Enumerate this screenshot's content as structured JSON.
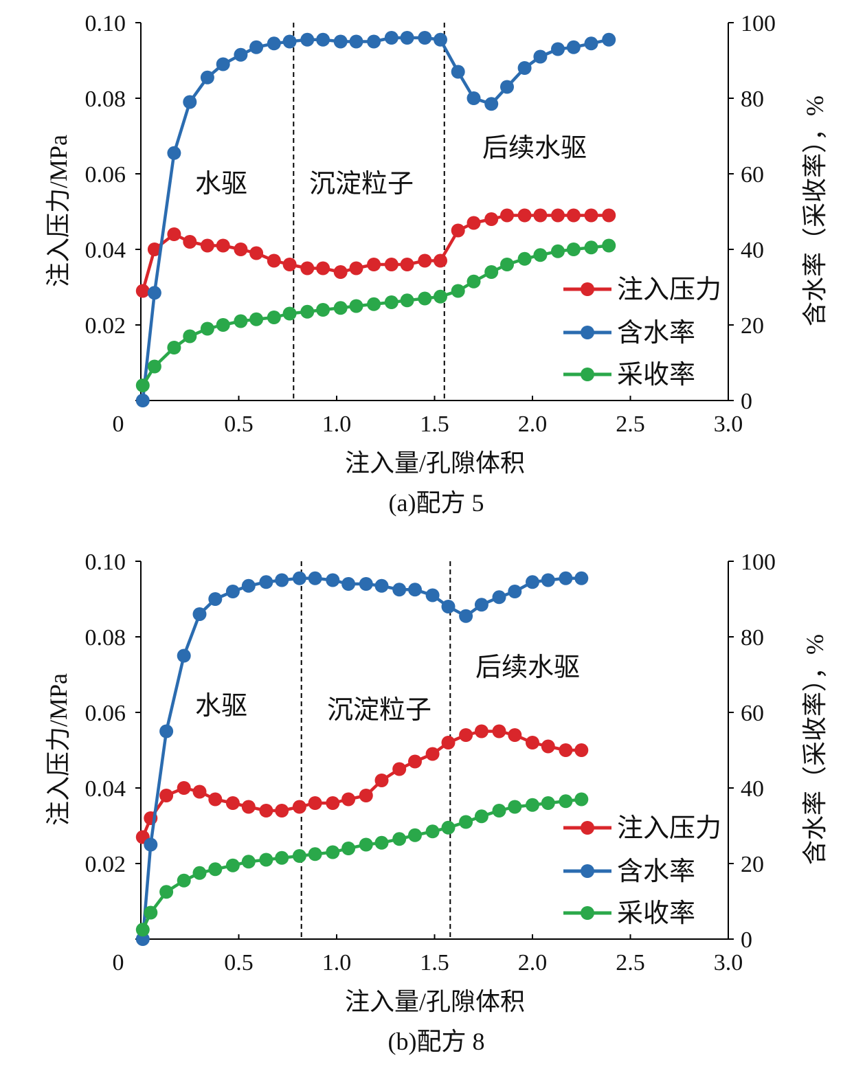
{
  "colors": {
    "pressure": "#d9262b",
    "water_cut": "#2b6cb0",
    "recovery": "#2aa84a"
  },
  "chart_data": [
    {
      "type": "line",
      "caption": "(a)配方 5",
      "xlabel": "注入量/孔隙体积",
      "ylabel_left": "注入压力/MPa",
      "ylabel_right": "含水率（采收率），%",
      "xlim": [
        0,
        3.0
      ],
      "ylim_left": [
        0,
        0.1
      ],
      "ylim_right": [
        0,
        100
      ],
      "xticks": [
        "0",
        "0.5",
        "1.0",
        "1.5",
        "2.0",
        "2.5",
        "3.0"
      ],
      "yticks_left": [
        "",
        "0.02",
        "0.04",
        "0.06",
        "0.08",
        "0.10"
      ],
      "yticks_right": [
        "0",
        "20",
        "40",
        "60",
        "80",
        "100"
      ],
      "grid": false,
      "legend_position": "bottom-right",
      "dividers_x": [
        0.78,
        1.55
      ],
      "regions": [
        "水驱",
        "沉淀粒子",
        "后续水驱"
      ],
      "series": [
        {
          "name": "注入压力",
          "axis": "left",
          "color_key": "pressure",
          "x": [
            0.01,
            0.07,
            0.17,
            0.25,
            0.34,
            0.42,
            0.51,
            0.59,
            0.68,
            0.76,
            0.85,
            0.93,
            1.02,
            1.1,
            1.19,
            1.28,
            1.36,
            1.45,
            1.53,
            1.62,
            1.7,
            1.79,
            1.87,
            1.96,
            2.04,
            2.13,
            2.21,
            2.3,
            2.39
          ],
          "y": [
            0.029,
            0.04,
            0.044,
            0.042,
            0.041,
            0.041,
            0.04,
            0.039,
            0.037,
            0.036,
            0.035,
            0.035,
            0.034,
            0.035,
            0.036,
            0.036,
            0.036,
            0.037,
            0.037,
            0.045,
            0.047,
            0.048,
            0.049,
            0.049,
            0.049,
            0.049,
            0.049,
            0.049,
            0.049
          ]
        },
        {
          "name": "含水率",
          "axis": "right",
          "color_key": "water_cut",
          "x": [
            0.01,
            0.07,
            0.17,
            0.25,
            0.34,
            0.42,
            0.51,
            0.59,
            0.68,
            0.76,
            0.85,
            0.93,
            1.02,
            1.1,
            1.19,
            1.28,
            1.36,
            1.45,
            1.53,
            1.62,
            1.7,
            1.79,
            1.87,
            1.96,
            2.04,
            2.13,
            2.21,
            2.3,
            2.39
          ],
          "y": [
            0,
            28.5,
            65.5,
            79,
            85.5,
            89,
            91.5,
            93.5,
            94.5,
            95,
            95.5,
            95.5,
            95,
            95,
            95,
            96,
            96,
            96,
            95.5,
            87,
            80,
            78.5,
            83,
            88,
            91,
            93,
            93.5,
            94.5,
            95.5
          ]
        },
        {
          "name": "采收率",
          "axis": "right",
          "color_key": "recovery",
          "x": [
            0.01,
            0.07,
            0.17,
            0.25,
            0.34,
            0.42,
            0.51,
            0.59,
            0.68,
            0.76,
            0.85,
            0.93,
            1.02,
            1.1,
            1.19,
            1.28,
            1.36,
            1.45,
            1.53,
            1.62,
            1.7,
            1.79,
            1.87,
            1.96,
            2.04,
            2.13,
            2.21,
            2.3,
            2.39
          ],
          "y": [
            4,
            9,
            14,
            17,
            19,
            20,
            21,
            21.5,
            22,
            23,
            23.5,
            24,
            24.5,
            25,
            25.5,
            26,
            26.5,
            27,
            27.5,
            29,
            31.5,
            34,
            36,
            37.5,
            38.5,
            39.5,
            40,
            40.5,
            41
          ]
        }
      ]
    },
    {
      "type": "line",
      "caption": "(b)配方 8",
      "xlabel": "注入量/孔隙体积",
      "ylabel_left": "注入压力/MPa",
      "ylabel_right": "含水率（采收率），%",
      "xlim": [
        0,
        3.0
      ],
      "ylim_left": [
        0,
        0.1
      ],
      "ylim_right": [
        0,
        100
      ],
      "xticks": [
        "0",
        "0.5",
        "1.0",
        "1.5",
        "2.0",
        "2.5",
        "3.0"
      ],
      "yticks_left": [
        "",
        "0.02",
        "0.04",
        "0.06",
        "0.08",
        "0.10"
      ],
      "yticks_right": [
        "0",
        "20",
        "40",
        "60",
        "80",
        "100"
      ],
      "grid": false,
      "legend_position": "bottom-right",
      "dividers_x": [
        0.82,
        1.58
      ],
      "regions": [
        "水驱",
        "沉淀粒子",
        "后续水驱"
      ],
      "series": [
        {
          "name": "注入压力",
          "axis": "left",
          "color_key": "pressure",
          "x": [
            0.01,
            0.05,
            0.13,
            0.22,
            0.3,
            0.38,
            0.47,
            0.55,
            0.64,
            0.72,
            0.81,
            0.89,
            0.98,
            1.06,
            1.15,
            1.23,
            1.32,
            1.4,
            1.49,
            1.57,
            1.66,
            1.74,
            1.83,
            1.91,
            2.0,
            2.08,
            2.17,
            2.25
          ],
          "y": [
            0.027,
            0.032,
            0.038,
            0.04,
            0.039,
            0.037,
            0.036,
            0.035,
            0.034,
            0.034,
            0.035,
            0.036,
            0.036,
            0.037,
            0.038,
            0.042,
            0.045,
            0.047,
            0.049,
            0.052,
            0.054,
            0.055,
            0.055,
            0.054,
            0.052,
            0.051,
            0.05,
            0.05
          ]
        },
        {
          "name": "含水率",
          "axis": "right",
          "color_key": "water_cut",
          "x": [
            0.01,
            0.05,
            0.13,
            0.22,
            0.3,
            0.38,
            0.47,
            0.55,
            0.64,
            0.72,
            0.81,
            0.89,
            0.98,
            1.06,
            1.15,
            1.23,
            1.32,
            1.4,
            1.49,
            1.57,
            1.66,
            1.74,
            1.83,
            1.91,
            2.0,
            2.08,
            2.17,
            2.25
          ],
          "y": [
            0,
            25,
            55,
            75,
            86,
            90,
            92,
            93.5,
            94.5,
            95,
            95.5,
            95.5,
            95,
            94,
            94,
            93.5,
            92.5,
            92.5,
            91,
            88,
            85.5,
            88.5,
            90.5,
            92,
            94.5,
            95,
            95.5,
            95.5
          ]
        },
        {
          "name": "采收率",
          "axis": "right",
          "color_key": "recovery",
          "x": [
            0.01,
            0.05,
            0.13,
            0.22,
            0.3,
            0.38,
            0.47,
            0.55,
            0.64,
            0.72,
            0.81,
            0.89,
            0.98,
            1.06,
            1.15,
            1.23,
            1.32,
            1.4,
            1.49,
            1.57,
            1.66,
            1.74,
            1.83,
            1.91,
            2.0,
            2.08,
            2.17,
            2.25
          ],
          "y": [
            2.5,
            7,
            12.5,
            15.5,
            17.5,
            18.5,
            19.5,
            20.5,
            21,
            21.5,
            22,
            22.5,
            23,
            24,
            25,
            25.5,
            26.5,
            27.5,
            28.5,
            29.5,
            31,
            32.5,
            34,
            35,
            35.5,
            36,
            36.5,
            37
          ]
        }
      ]
    }
  ]
}
